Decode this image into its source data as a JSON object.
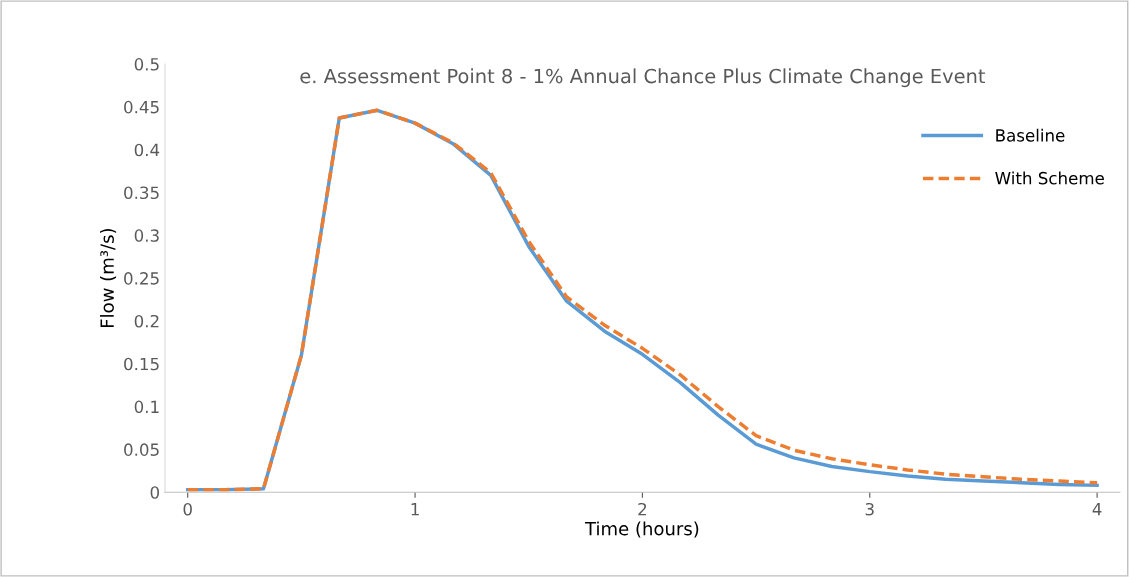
{
  "chart_data": {
    "type": "line",
    "title": "e. Assessment Point 8 - 1% Annual Chance Plus Climate Change Event",
    "xlabel": "Time (hours)",
    "ylabel": "Flow (m³/s)",
    "x": [
      0,
      0.1667,
      0.3333,
      0.5,
      0.6667,
      0.8333,
      1,
      1.1667,
      1.3333,
      1.5,
      1.6667,
      1.8333,
      2,
      2.1667,
      2.3333,
      2.5,
      2.6667,
      2.8333,
      3,
      3.1667,
      3.3333,
      3.5,
      3.6667,
      3.8333,
      4
    ],
    "series": [
      {
        "name": "Baseline",
        "color": "#5b9bd5",
        "line_style": "solid",
        "values": [
          0.003,
          0.003,
          0.004,
          0.16,
          0.437,
          0.446,
          0.431,
          0.407,
          0.37,
          0.287,
          0.223,
          0.188,
          0.161,
          0.128,
          0.09,
          0.056,
          0.04,
          0.03,
          0.024,
          0.019,
          0.015,
          0.013,
          0.011,
          0.009,
          0.008
        ]
      },
      {
        "name": "With Scheme",
        "color": "#ed7d31",
        "line_style": "dashed",
        "values": [
          0.003,
          0.003,
          0.004,
          0.16,
          0.437,
          0.446,
          0.431,
          0.408,
          0.373,
          0.293,
          0.228,
          0.195,
          0.168,
          0.137,
          0.1,
          0.066,
          0.049,
          0.039,
          0.032,
          0.026,
          0.021,
          0.018,
          0.015,
          0.013,
          0.011
        ]
      }
    ],
    "xlim": [
      -0.1,
      4.1
    ],
    "xticks": [
      0,
      1,
      2,
      3,
      4
    ],
    "ylim": [
      0,
      0.5
    ],
    "yticks": [
      0,
      0.05,
      0.1,
      0.15,
      0.2,
      0.25,
      0.3,
      0.35,
      0.4,
      0.45,
      0.5
    ],
    "grid": false,
    "legend": "right",
    "marker": "none"
  }
}
